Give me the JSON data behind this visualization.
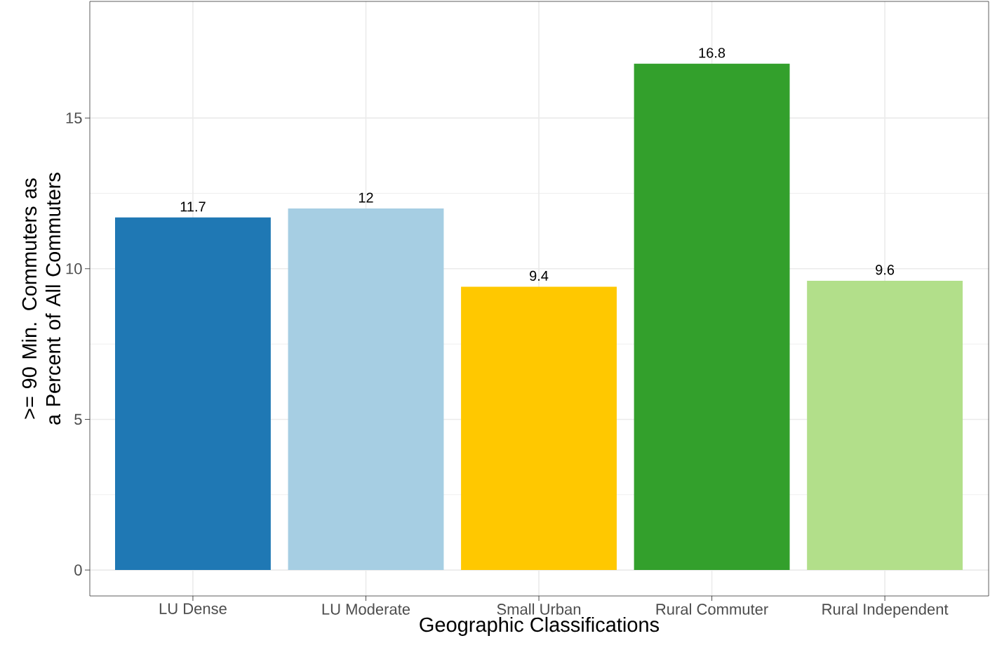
{
  "chart_data": {
    "type": "bar",
    "xlabel": "Geographic Classifications",
    "ylabel": ">= 90 Min. Commuters as a Percent of All Commuters",
    "categories": [
      "LU Dense",
      "LU Moderate",
      "Small Urban",
      "Rural Commuter",
      "Rural Independent"
    ],
    "values": [
      11.7,
      12,
      9.4,
      16.8,
      9.6
    ],
    "colors": [
      "#1f78b4",
      "#a6cee3",
      "#ffc800",
      "#33a02c",
      "#b2df8a"
    ],
    "ylim": [
      -0.86,
      18.87
    ],
    "yticks": [
      0,
      5,
      10,
      15
    ],
    "grid": true,
    "data_labels": true
  }
}
